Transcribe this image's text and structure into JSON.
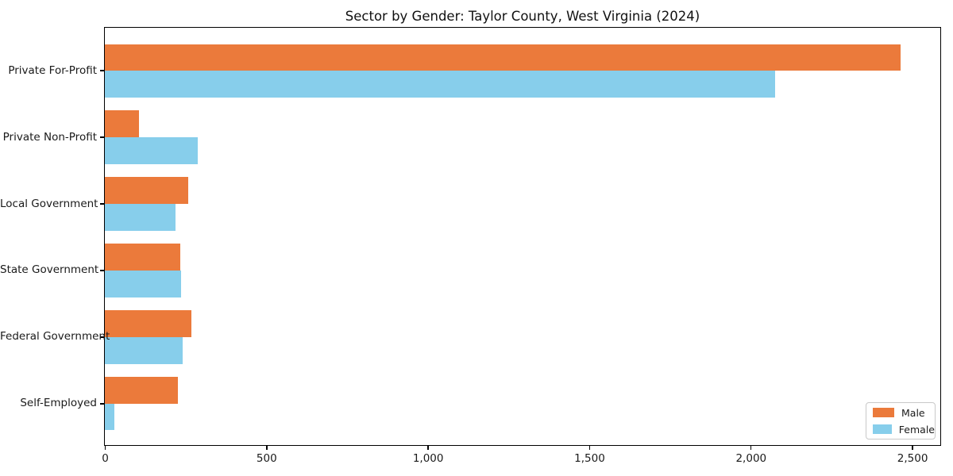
{
  "figure": {
    "background": "#ffffff",
    "axis_color": "#000000"
  },
  "chart_data": {
    "type": "bar",
    "orientation": "horizontal",
    "title": "Sector by Gender: Taylor County, West Virginia (2024)",
    "xlabel": "",
    "ylabel": "",
    "categories": [
      "Private For-Profit",
      "Private Non-Profit",
      "Local Government",
      "State Government",
      "Federal Government",
      "Self-Employed"
    ],
    "series": [
      {
        "name": "Male",
        "color": "#EB7A3B",
        "values": [
          2464,
          106,
          258,
          233,
          268,
          227
        ]
      },
      {
        "name": "Female",
        "color": "#87CEEB",
        "values": [
          2076,
          288,
          220,
          236,
          241,
          30
        ]
      }
    ],
    "xlim": [
      0,
      2587
    ],
    "xticks": {
      "values": [
        0,
        500,
        1000,
        1500,
        2000,
        2500
      ],
      "labels": [
        "0",
        "500",
        "1,000",
        "1,500",
        "2,000",
        "2,500"
      ]
    },
    "grid": false,
    "legend": {
      "position": "lower right",
      "labels": [
        "Male",
        "Female"
      ]
    }
  }
}
